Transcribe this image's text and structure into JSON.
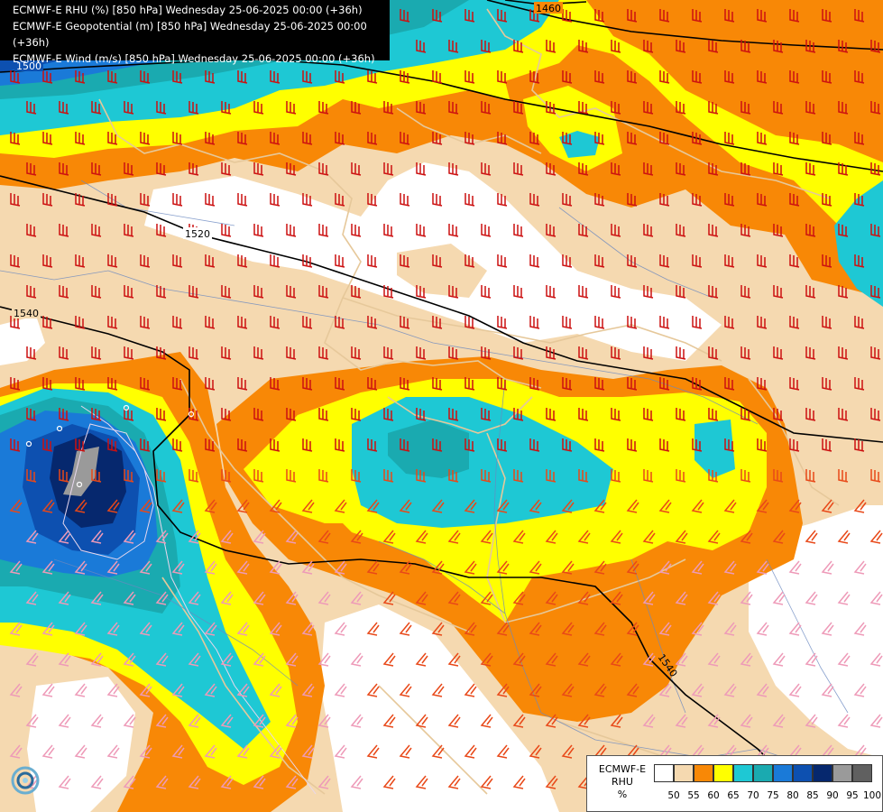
{
  "title_lines": [
    "ECMWF-E RHU (%) [850 hPa] Wednesday 25-06-2025 00:00 (+36h)",
    "ECMWF-E Geopotential (m) [850 hPa] Wednesday 25-06-2025 00:00 (+36h)",
    "ECMWF-E Wind (m/s) [850 hPa] Wednesday 25-06-2025 00:00 (+36h)"
  ],
  "legend": {
    "model": "ECMWF-E",
    "variable": "RHU",
    "unit": "%",
    "levels": [
      "50",
      "55",
      "60",
      "65",
      "70",
      "75",
      "80",
      "85",
      "90",
      "95",
      "100"
    ],
    "colors": [
      "#ffffff",
      "#f5d9b0",
      "#f88806",
      "#ffff00",
      "#1ec8d4",
      "#1aaab0",
      "#1a7ad8",
      "#0d50b0",
      "#06286e",
      "#9a9a9a",
      "#606060"
    ]
  },
  "contour_labels": [
    "1460",
    "1500",
    "1520",
    "1540",
    "1540"
  ],
  "colors": {
    "white": "#ffffff",
    "tan": "#f5d9b0",
    "orange": "#f88806",
    "yellow": "#ffff00",
    "cyan": "#1ec8d4",
    "teal": "#1aaab0",
    "blue": "#1a7ad8",
    "darkblue": "#0d50b0",
    "navy": "#06286e",
    "grey": "#9a9a9a",
    "border": "#e6c89a",
    "river": "#6a88c0",
    "barb_red": "#cc1010",
    "barb_orange": "#e84818",
    "barb_pink": "#ee9ab8"
  },
  "logo_name": "ecmwf-logo-icon"
}
